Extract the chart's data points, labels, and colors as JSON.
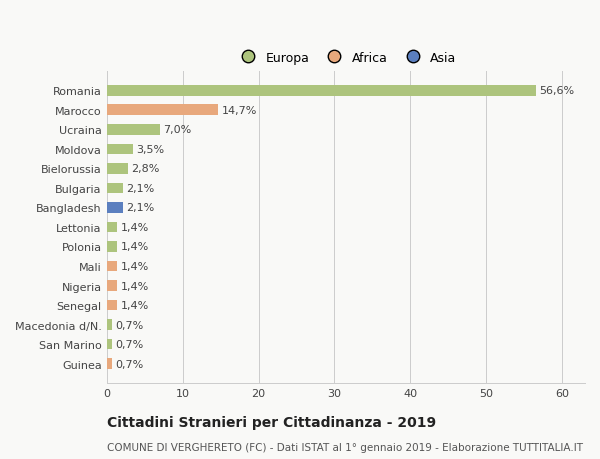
{
  "countries": [
    "Romania",
    "Marocco",
    "Ucraina",
    "Moldova",
    "Bielorussia",
    "Bulgaria",
    "Bangladesh",
    "Lettonia",
    "Polonia",
    "Mali",
    "Nigeria",
    "Senegal",
    "Macedonia d/N.",
    "San Marino",
    "Guinea"
  ],
  "values": [
    56.6,
    14.7,
    7.0,
    3.5,
    2.8,
    2.1,
    2.1,
    1.4,
    1.4,
    1.4,
    1.4,
    1.4,
    0.7,
    0.7,
    0.7
  ],
  "labels": [
    "56,6%",
    "14,7%",
    "7,0%",
    "3,5%",
    "2,8%",
    "2,1%",
    "2,1%",
    "1,4%",
    "1,4%",
    "1,4%",
    "1,4%",
    "1,4%",
    "0,7%",
    "0,7%",
    "0,7%"
  ],
  "continent": [
    "Europa",
    "Africa",
    "Europa",
    "Europa",
    "Europa",
    "Europa",
    "Asia",
    "Europa",
    "Europa",
    "Africa",
    "Africa",
    "Africa",
    "Europa",
    "Europa",
    "Africa"
  ],
  "colors": {
    "Europa": "#adc47d",
    "Africa": "#e8a87c",
    "Asia": "#5b7fbf"
  },
  "xlim": [
    0,
    63
  ],
  "xticks": [
    0,
    10,
    20,
    30,
    40,
    50,
    60
  ],
  "title": "Cittadini Stranieri per Cittadinanza - 2019",
  "subtitle": "COMUNE DI VERGHERETO (FC) - Dati ISTAT al 1° gennaio 2019 - Elaborazione TUTTITALIA.IT",
  "background_color": "#f9f9f7",
  "bar_height": 0.55,
  "title_fontsize": 10,
  "subtitle_fontsize": 7.5,
  "tick_label_fontsize": 8,
  "label_fontsize": 8,
  "legend_fontsize": 9
}
